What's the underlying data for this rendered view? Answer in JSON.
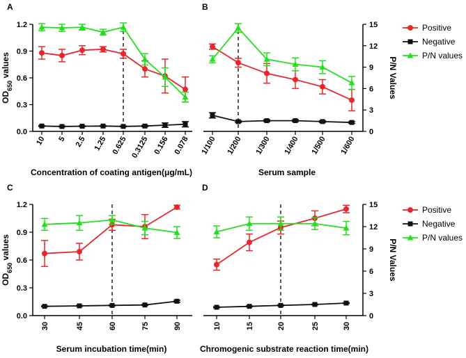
{
  "chart_data": [
    {
      "panel": "A",
      "type": "line",
      "categories": [
        "10",
        "5",
        "2.5",
        "1.25",
        "0.625",
        "0.3125",
        "0.156",
        "0.078"
      ],
      "xlabel": "Concentration of coating antigen(μg/mL)",
      "ylabel_left": "OD650 values",
      "ylim_left": [
        0,
        1.2
      ],
      "yticks_left": [
        "0.0",
        "0.3",
        "0.6",
        "0.9",
        "1.2"
      ],
      "ylabel_right": "",
      "ylim_right": [
        0,
        15
      ],
      "yticks_right": [],
      "dashed_at": 4,
      "series": [
        {
          "name": "Positive",
          "axis": "left",
          "values": [
            0.88,
            0.85,
            0.91,
            0.92,
            0.87,
            0.7,
            0.62,
            0.47
          ],
          "errors": [
            0.07,
            0.07,
            0.05,
            0.03,
            0.05,
            0.09,
            0.19,
            0.14
          ]
        },
        {
          "name": "Negative",
          "axis": "left",
          "values": [
            0.06,
            0.055,
            0.058,
            0.06,
            0.056,
            0.06,
            0.07,
            0.08
          ],
          "errors": [
            0.005,
            0.005,
            0.005,
            0.005,
            0.005,
            0.008,
            0.025,
            0.03
          ]
        },
        {
          "name": "P/N values",
          "axis": "right",
          "values": [
            14.6,
            14.5,
            14.6,
            13.9,
            14.6,
            10.1,
            7.6,
            4.8
          ],
          "errors": [
            0.5,
            0.5,
            0.4,
            0.4,
            0.6,
            0.8,
            1.3,
            0.7
          ]
        }
      ]
    },
    {
      "panel": "B",
      "type": "line",
      "categories": [
        "1/100",
        "1/200",
        "1/300",
        "1/400",
        "1/500",
        "1/600"
      ],
      "xlabel": "Serum sample",
      "ylabel_left": "",
      "ylim_left": [
        0,
        1.2
      ],
      "yticks_left": [],
      "ylabel_right": "P/N Values",
      "ylim_right": [
        0,
        15
      ],
      "yticks_right": [
        "0",
        "3",
        "6",
        "9",
        "12",
        "15"
      ],
      "dashed_at": 1,
      "series": [
        {
          "name": "Positive",
          "axis": "left",
          "values": [
            0.95,
            0.77,
            0.65,
            0.58,
            0.5,
            0.35
          ],
          "errors": [
            0.03,
            0.05,
            0.11,
            0.1,
            0.08,
            0.12
          ]
        },
        {
          "name": "Negative",
          "axis": "left",
          "values": [
            0.18,
            0.11,
            0.12,
            0.12,
            0.11,
            0.1
          ],
          "errors": [
            0.03,
            0.01,
            0.01,
            0.01,
            0.01,
            0.01
          ]
        },
        {
          "name": "P/N values",
          "axis": "right",
          "values": [
            10.1,
            14.5,
            10.1,
            9.4,
            9.0,
            6.8
          ],
          "errors": [
            0.5,
            0.6,
            0.9,
            0.9,
            0.9,
            0.9
          ]
        }
      ]
    },
    {
      "panel": "C",
      "type": "line",
      "categories": [
        "30",
        "45",
        "60",
        "75",
        "90"
      ],
      "xlabel": "Serum incubation time(min)",
      "ylabel_left": "OD650 values",
      "ylim_left": [
        0,
        1.2
      ],
      "yticks_left": [
        "0.0",
        "0.3",
        "0.6",
        "0.9",
        "1.2"
      ],
      "ylabel_right": "",
      "ylim_right": [
        0,
        15
      ],
      "yticks_right": [],
      "dashed_at": 2,
      "series": [
        {
          "name": "Positive",
          "axis": "left",
          "values": [
            0.67,
            0.69,
            0.98,
            0.96,
            1.17
          ],
          "errors": [
            0.14,
            0.09,
            0.06,
            0.13,
            0.02
          ]
        },
        {
          "name": "Negative",
          "axis": "left",
          "values": [
            0.1,
            0.105,
            0.11,
            0.115,
            0.155
          ],
          "errors": [
            0.005,
            0.005,
            0.005,
            0.005,
            0.01
          ]
        },
        {
          "name": "P/N values",
          "axis": "right",
          "values": [
            12.3,
            12.5,
            12.9,
            11.8,
            11.2
          ],
          "errors": [
            0.8,
            1.0,
            0.6,
            0.9,
            0.8
          ]
        }
      ]
    },
    {
      "panel": "D",
      "type": "line",
      "categories": [
        "10",
        "15",
        "20",
        "25",
        "30"
      ],
      "xlabel": "Chromogenic substrate reaction time(min)",
      "ylabel_left": "",
      "ylim_left": [
        0,
        1.2
      ],
      "yticks_left": [],
      "ylabel_right": "P/N Values",
      "ylim_right": [
        0,
        15
      ],
      "yticks_right": [
        "0",
        "3",
        "6",
        "9",
        "12",
        "15"
      ],
      "dashed_at": 2,
      "series": [
        {
          "name": "Positive",
          "axis": "left",
          "values": [
            0.55,
            0.79,
            0.95,
            1.05,
            1.15
          ],
          "errors": [
            0.06,
            0.09,
            0.07,
            0.08,
            0.04
          ]
        },
        {
          "name": "Negative",
          "axis": "left",
          "values": [
            0.09,
            0.1,
            0.11,
            0.12,
            0.135
          ],
          "errors": [
            0.005,
            0.005,
            0.005,
            0.005,
            0.005
          ]
        },
        {
          "name": "P/N values",
          "axis": "right",
          "values": [
            11.3,
            12.4,
            12.4,
            12.4,
            11.8
          ],
          "errors": [
            0.8,
            0.9,
            0.9,
            0.8,
            0.9
          ]
        }
      ]
    }
  ],
  "legend": [
    {
      "name": "Positive",
      "color": "#e8262b",
      "marker": "circle"
    },
    {
      "name": "Negative",
      "color": "#111111",
      "marker": "square"
    },
    {
      "name": "P/N values",
      "color": "#22e01e",
      "marker": "triangle"
    }
  ]
}
